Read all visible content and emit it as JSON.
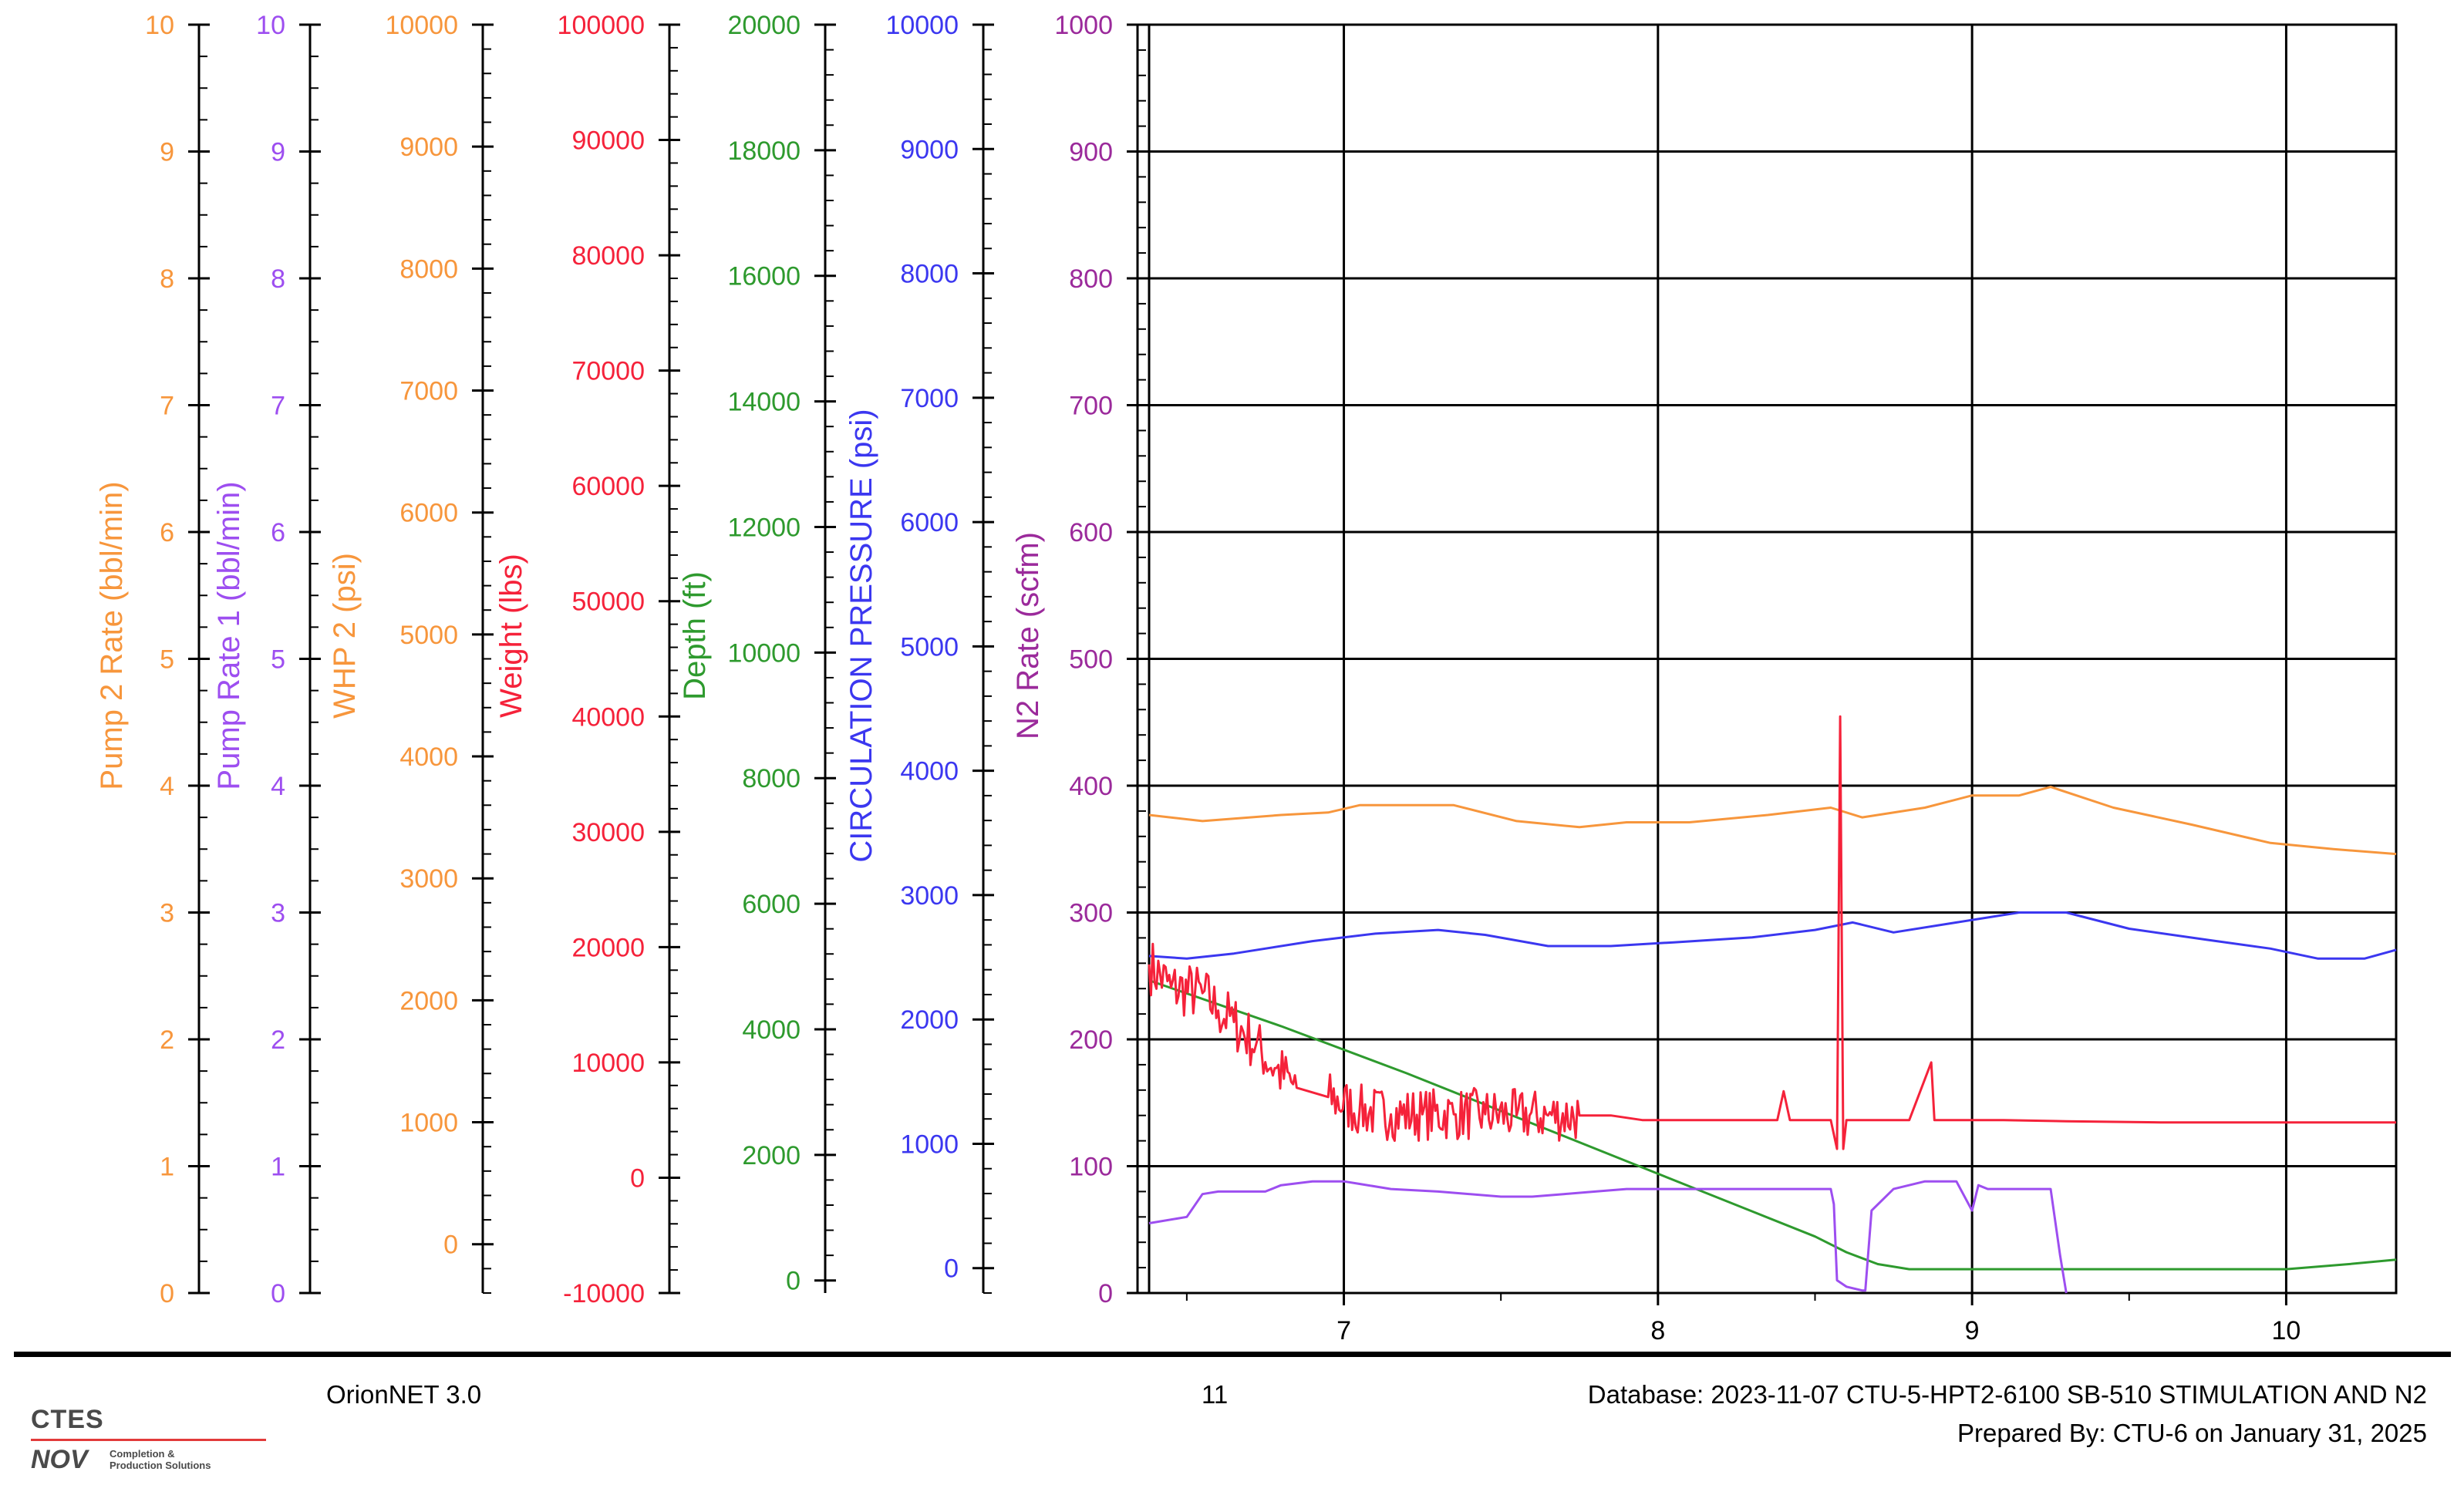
{
  "chart_data": {
    "type": "line",
    "title": "",
    "x_axis": {
      "range": [
        6.38,
        10.35
      ],
      "ticks": [
        7,
        8,
        9,
        10
      ],
      "minor_step": 0.5,
      "grid": true
    },
    "plot_grid": {
      "y_range": [
        0,
        1000
      ],
      "y_step": 100,
      "grid": true
    },
    "axes": [
      {
        "key": "pump2",
        "label": "Pump 2 Rate  (bbl/min)",
        "color": "#f7963c",
        "range": [
          0,
          10
        ],
        "major": 1,
        "minor": 0.25,
        "tick_labels": [
          "0",
          "1",
          "2",
          "3",
          "4",
          "5",
          "6",
          "7",
          "8",
          "9",
          "10"
        ]
      },
      {
        "key": "pump1",
        "label": "Pump Rate 1  (bbl/min)",
        "color": "#9d4ef0",
        "range": [
          0,
          10
        ],
        "major": 1,
        "minor": 0.25,
        "tick_labels": [
          "0",
          "1",
          "2",
          "3",
          "4",
          "5",
          "6",
          "7",
          "8",
          "9",
          "10"
        ]
      },
      {
        "key": "whp2",
        "label": "WHP 2  (psi)",
        "color": "#f7963c",
        "range": [
          -400,
          10000
        ],
        "major": 1000,
        "minor": 200,
        "first_major": 0,
        "tick_labels": [
          "0",
          "1000",
          "2000",
          "3000",
          "4000",
          "5000",
          "6000",
          "7000",
          "8000",
          "9000",
          "10000"
        ]
      },
      {
        "key": "weight",
        "label": "Weight  (lbs)",
        "color": "#f5223a",
        "range": [
          -10000,
          100000
        ],
        "major": 10000,
        "minor": 2000,
        "first_major": -10000,
        "tick_labels": [
          "-10000",
          "0",
          "10000",
          "20000",
          "30000",
          "40000",
          "50000",
          "60000",
          "70000",
          "80000",
          "90000",
          "100000"
        ]
      },
      {
        "key": "depth",
        "label": "Depth  (ft)",
        "color": "#2e9a2e",
        "range": [
          -200,
          20000
        ],
        "major": 2000,
        "minor": 400,
        "first_major": 0,
        "tick_labels": [
          "0",
          "2000",
          "4000",
          "6000",
          "8000",
          "10000",
          "12000",
          "14000",
          "16000",
          "18000",
          "20000"
        ]
      },
      {
        "key": "circ",
        "label": "CIRCULATION PRESSURE  (psi)",
        "color": "#3b37f0",
        "range": [
          -200,
          10000
        ],
        "major": 1000,
        "minor": 200,
        "first_major": 0,
        "tick_labels": [
          "0",
          "1000",
          "2000",
          "3000",
          "4000",
          "5000",
          "6000",
          "7000",
          "8000",
          "9000",
          "10000"
        ]
      },
      {
        "key": "n2",
        "label": "N2 Rate  (scfm)",
        "color": "#9b2a9b",
        "range": [
          0,
          1000
        ],
        "major": 100,
        "minor": 20,
        "tick_labels": [
          "0",
          "100",
          "200",
          "300",
          "400",
          "500",
          "600",
          "700",
          "800",
          "900",
          "1000"
        ]
      }
    ],
    "series": [
      {
        "key": "whp2_line",
        "axis": "whp2",
        "color": "#f7963c",
        "x": [
          6.38,
          6.55,
          6.8,
          6.95,
          7.05,
          7.35,
          7.55,
          7.75,
          7.9,
          8.1,
          8.35,
          8.55,
          8.65,
          8.85,
          9.0,
          9.15,
          9.25,
          9.45,
          9.7,
          9.95,
          10.15,
          10.35
        ],
        "y": [
          3520,
          3470,
          3520,
          3540,
          3600,
          3600,
          3470,
          3420,
          3460,
          3460,
          3520,
          3580,
          3500,
          3580,
          3680,
          3680,
          3750,
          3580,
          3440,
          3290,
          3240,
          3200
        ]
      },
      {
        "key": "circ_line",
        "axis": "circ",
        "color": "#3b37f0",
        "x": [
          6.38,
          6.5,
          6.65,
          6.9,
          7.1,
          7.3,
          7.45,
          7.65,
          7.85,
          8.05,
          8.3,
          8.5,
          8.62,
          8.75,
          8.95,
          9.15,
          9.3,
          9.5,
          9.75,
          9.95,
          10.1,
          10.25,
          10.35
        ],
        "y": [
          2510,
          2490,
          2530,
          2630,
          2690,
          2720,
          2680,
          2590,
          2590,
          2620,
          2660,
          2720,
          2780,
          2700,
          2780,
          2860,
          2860,
          2730,
          2640,
          2570,
          2490,
          2490,
          2560
        ]
      },
      {
        "key": "depth_line",
        "axis": "depth",
        "color": "#2e9a2e",
        "x": [
          6.38,
          6.8,
          7.2,
          7.6,
          7.9,
          8.1,
          8.3,
          8.5,
          8.6,
          8.7,
          8.8,
          9.0,
          9.5,
          10.0,
          10.2,
          10.35
        ],
        "y": [
          4780,
          4050,
          3300,
          2500,
          1900,
          1500,
          1100,
          700,
          450,
          260,
          180,
          180,
          180,
          180,
          260,
          330
        ]
      },
      {
        "key": "weight_line",
        "axis": "weight",
        "color": "#f5223a",
        "noisy": true,
        "x": [
          6.38,
          6.45,
          6.55,
          6.6,
          6.65,
          6.72,
          6.78,
          6.85,
          6.95,
          7.05,
          7.15,
          7.25,
          7.35,
          7.45,
          7.55,
          7.65,
          7.75,
          7.85,
          7.95,
          8.1,
          8.25,
          8.38,
          8.4,
          8.42,
          8.5,
          8.55,
          8.57,
          8.58,
          8.59,
          8.6,
          8.62,
          8.7,
          8.8,
          8.87,
          8.88,
          8.9,
          8.95,
          9.1,
          9.3,
          9.6,
          10.0,
          10.35
        ],
        "y": [
          18500,
          16500,
          16000,
          14500,
          13500,
          11500,
          9500,
          7800,
          7000,
          5800,
          5500,
          5500,
          5500,
          5500,
          5400,
          5400,
          5400,
          5400,
          5000,
          5000,
          5000,
          5000,
          7500,
          5000,
          5000,
          5000,
          2500,
          40000,
          2500,
          5000,
          5000,
          5000,
          5000,
          10000,
          5000,
          5000,
          5000,
          5000,
          4900,
          4800,
          4800,
          4800
        ],
        "noise_ranges": [
          [
            6.38,
            6.85,
            2500
          ],
          [
            6.95,
            7.82,
            2300
          ]
        ]
      },
      {
        "key": "pump1_line",
        "axis": "pump1",
        "color": "#9d4ef0",
        "x": [
          6.38,
          6.5,
          6.55,
          6.6,
          6.75,
          6.8,
          6.9,
          7.0,
          7.05,
          7.15,
          7.3,
          7.5,
          7.6,
          7.7,
          7.8,
          7.9,
          8.0,
          8.15,
          8.3,
          8.45,
          8.55,
          8.56,
          8.57,
          8.6,
          8.65,
          8.66,
          8.68,
          8.75,
          8.85,
          8.95,
          9.0,
          9.02,
          9.05,
          9.25,
          9.28,
          9.3
        ],
        "y": [
          0.55,
          0.6,
          0.78,
          0.8,
          0.8,
          0.85,
          0.88,
          0.88,
          0.86,
          0.82,
          0.8,
          0.76,
          0.76,
          0.78,
          0.8,
          0.82,
          0.82,
          0.82,
          0.82,
          0.82,
          0.82,
          0.7,
          0.1,
          0.05,
          0.02,
          0.02,
          0.65,
          0.82,
          0.88,
          0.88,
          0.65,
          0.85,
          0.82,
          0.82,
          0.3,
          0.0
        ]
      }
    ]
  },
  "footer": {
    "app": "OrionNET 3.0",
    "page": "11",
    "database": "Database: 2023-11-07 CTU-5-HPT2-6100 SB-510 STIMULATION AND N2",
    "prepared": "Prepared By: CTU-6 on January 31, 2025"
  },
  "logo": {
    "brand": "CTES",
    "parent": "NOV",
    "tagline_1": "Completion &",
    "tagline_2": "Production Solutions"
  }
}
